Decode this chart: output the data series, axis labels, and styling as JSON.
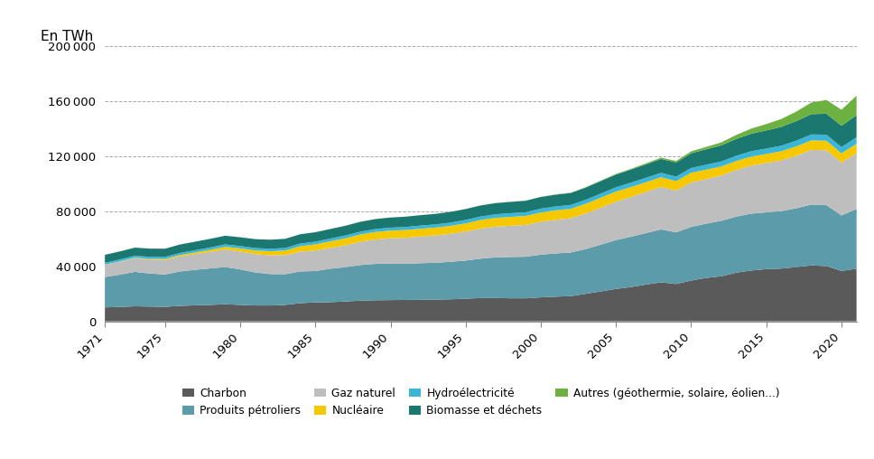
{
  "years": [
    1971,
    1972,
    1973,
    1974,
    1975,
    1976,
    1977,
    1978,
    1979,
    1980,
    1981,
    1982,
    1983,
    1984,
    1985,
    1986,
    1987,
    1988,
    1989,
    1990,
    1991,
    1992,
    1993,
    1994,
    1995,
    1996,
    1997,
    1998,
    1999,
    2000,
    2001,
    2002,
    2003,
    2004,
    2005,
    2006,
    2007,
    2008,
    2009,
    2010,
    2011,
    2012,
    2013,
    2014,
    2015,
    2016,
    2017,
    2018,
    2019,
    2020,
    2021
  ],
  "charbon": [
    10100,
    10400,
    10900,
    10700,
    10500,
    11200,
    11600,
    11900,
    12400,
    11900,
    11500,
    11500,
    11900,
    13200,
    13700,
    13900,
    14400,
    15000,
    15300,
    15400,
    15500,
    15600,
    15800,
    16000,
    16400,
    16900,
    16900,
    16700,
    16700,
    17400,
    17900,
    18300,
    20000,
    21700,
    23500,
    24900,
    26700,
    28300,
    27100,
    29600,
    31500,
    32700,
    35300,
    36900,
    37900,
    38300,
    39400,
    40600,
    40100,
    36600,
    38200
  ],
  "petrole": [
    22000,
    23500,
    25000,
    24000,
    23500,
    25000,
    25800,
    26500,
    27000,
    25800,
    24000,
    22800,
    22300,
    23000,
    22800,
    24300,
    24900,
    25900,
    26400,
    26600,
    26200,
    26600,
    26700,
    27200,
    27700,
    28600,
    29500,
    30000,
    30200,
    31000,
    31400,
    31700,
    32500,
    34000,
    35500,
    36500,
    37400,
    38400,
    37500,
    38900,
    39400,
    40300,
    40700,
    41300,
    41200,
    41700,
    42700,
    44200,
    44200,
    40300,
    43300
  ],
  "gaz_naturel": [
    9000,
    9500,
    10000,
    10200,
    10500,
    11000,
    11400,
    12000,
    12800,
    13000,
    13300,
    13600,
    13900,
    14400,
    14900,
    15100,
    15900,
    16900,
    17700,
    18400,
    18900,
    19400,
    19900,
    20400,
    21100,
    21900,
    22400,
    22700,
    23100,
    23900,
    24400,
    24900,
    25900,
    26900,
    27900,
    28900,
    29900,
    30900,
    30400,
    32400,
    32400,
    32900,
    33900,
    34900,
    35900,
    36900,
    38100,
    39700,
    39900,
    38400,
    40400
  ],
  "nucleaire": [
    80,
    160,
    310,
    480,
    760,
    980,
    1250,
    1520,
    1900,
    2280,
    2680,
    2990,
    3310,
    3980,
    4490,
    4800,
    5100,
    5310,
    5510,
    5510,
    5720,
    5620,
    5720,
    5720,
    5920,
    6230,
    6330,
    6430,
    6540,
    6730,
    6930,
    6830,
    7030,
    7230,
    7330,
    7230,
    7030,
    7030,
    6830,
    7030,
    6830,
    6530,
    6530,
    6530,
    6530,
    6630,
    6830,
    6930,
    6930,
    6730,
    7030
  ],
  "hydroelec": [
    1300,
    1350,
    1400,
    1450,
    1480,
    1500,
    1550,
    1700,
    1750,
    1700,
    1750,
    1800,
    1850,
    1900,
    1950,
    2000,
    2050,
    2000,
    2100,
    2100,
    2200,
    2300,
    2250,
    2400,
    2500,
    2500,
    2600,
    2700,
    2700,
    2800,
    2800,
    2800,
    2900,
    3000,
    3100,
    3200,
    3200,
    3200,
    3250,
    3400,
    3600,
    3600,
    3800,
    3900,
    3900,
    4000,
    4200,
    4300,
    4400,
    4500,
    4700
  ],
  "biomasse": [
    5800,
    5850,
    5900,
    5950,
    5980,
    6100,
    6200,
    6250,
    6300,
    6350,
    6450,
    6550,
    6650,
    6750,
    6850,
    6950,
    7050,
    7150,
    7250,
    7350,
    7450,
    7550,
    7650,
    7750,
    7900,
    8000,
    8100,
    8200,
    8300,
    8450,
    8550,
    8650,
    8850,
    9050,
    9250,
    9450,
    9750,
    10050,
    10300,
    10700,
    11200,
    11700,
    12200,
    12700,
    13200,
    13700,
    14200,
    14700,
    15200,
    15500,
    16000
  ],
  "autres": [
    10,
    10,
    10,
    10,
    10,
    10,
    10,
    10,
    10,
    10,
    10,
    10,
    10,
    10,
    10,
    10,
    10,
    10,
    10,
    20,
    20,
    30,
    50,
    60,
    70,
    80,
    110,
    120,
    130,
    150,
    180,
    220,
    280,
    360,
    460,
    590,
    750,
    960,
    1100,
    1400,
    1700,
    2200,
    2900,
    3700,
    4600,
    5700,
    6900,
    8500,
    10000,
    11600,
    14200
  ],
  "colors": {
    "charbon": "#5A5A5A",
    "petrole": "#5B9BAA",
    "gaz_naturel": "#BEBEBE",
    "nucleaire": "#F5C800",
    "hydroelec": "#3BB5D8",
    "biomasse": "#1A7870",
    "autres": "#6DB240"
  },
  "labels": {
    "charbon": "Charbon",
    "petrole": "Produits pétroliers",
    "gaz_naturel": "Gaz naturel",
    "nucleaire": "Nucléaire",
    "hydroelec": "Hydroélectricité",
    "biomasse": "Biomasse et déchets",
    "autres": "Autres (géothermie, solaire, éolien...)"
  },
  "ylabel": "En TWh",
  "ylim": [
    0,
    200000
  ],
  "yticks": [
    0,
    40000,
    80000,
    120000,
    160000,
    200000
  ],
  "xticks": [
    1971,
    1975,
    1980,
    1985,
    1990,
    1995,
    2000,
    2005,
    2010,
    2015,
    2020
  ],
  "background_color": "#ffffff",
  "grid_color": "#AAAAAA"
}
